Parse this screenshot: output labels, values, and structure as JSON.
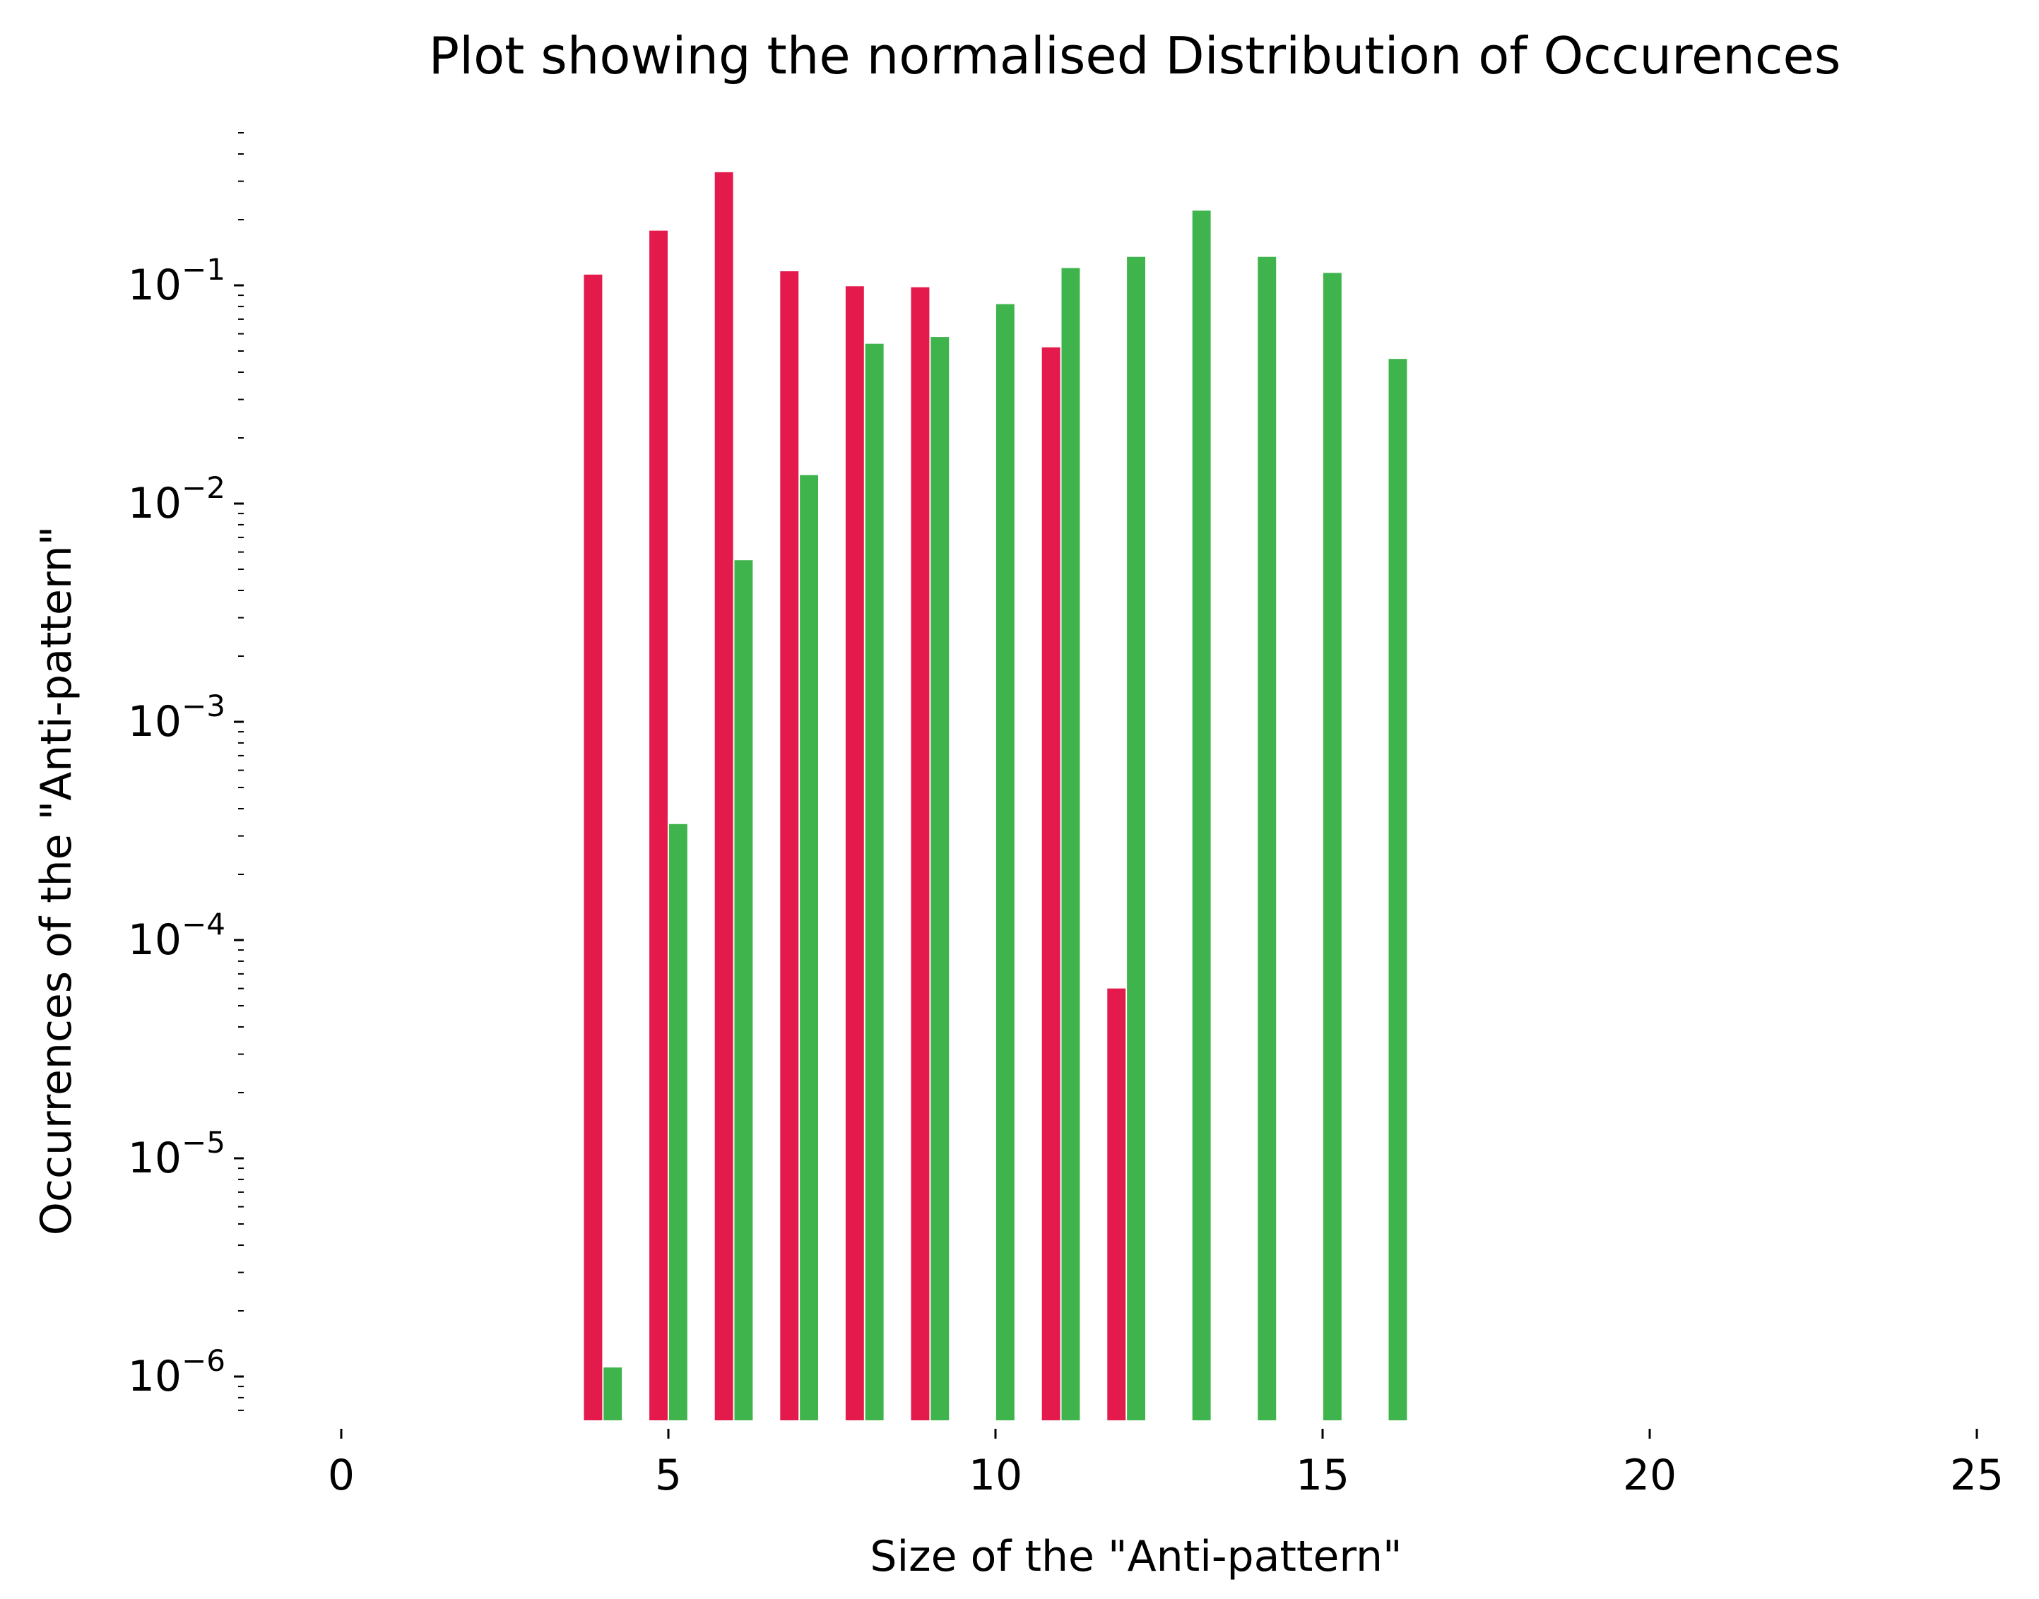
{
  "chart_data": {
    "type": "bar",
    "title": "Plot showing the normalised Distribution of Occurences",
    "xlabel": "Size of the \"Anti-pattern\"",
    "ylabel": "Occurrences of the \"Anti-pattern\"",
    "xlim": [
      -1.5,
      25
    ],
    "ylim": [
      5.7e-07,
      0.6
    ],
    "yscale": "log",
    "grid": false,
    "x_ticks": [
      0,
      5,
      10,
      15,
      20,
      25
    ],
    "x_tick_labels": [
      "0",
      "5",
      "10",
      "15",
      "20",
      "25"
    ],
    "y_ticks": [
      {
        "base": "10",
        "exp": "−6",
        "value": 1e-06
      },
      {
        "base": "10",
        "exp": "−5",
        "value": 1e-05
      },
      {
        "base": "10",
        "exp": "−4",
        "value": 0.0001
      },
      {
        "base": "10",
        "exp": "−3",
        "value": 0.001
      },
      {
        "base": "10",
        "exp": "−2",
        "value": 0.01
      },
      {
        "base": "10",
        "exp": "−1",
        "value": 0.1
      }
    ],
    "series": [
      {
        "color": "#e31a4b",
        "offset": -0.15,
        "x": [
          4,
          5,
          6,
          7,
          8,
          9,
          11,
          12
        ],
        "values": [
          0.112,
          0.178,
          0.33,
          0.116,
          0.099,
          0.098,
          0.052,
          6e-05
        ]
      },
      {
        "color": "#3fb44c",
        "offset": 0.15,
        "x": [
          4,
          5,
          6,
          7,
          8,
          9,
          10,
          11,
          12,
          13,
          14,
          15,
          16
        ],
        "values": [
          1.1e-06,
          0.00034,
          0.0055,
          0.0135,
          0.054,
          0.058,
          0.082,
          0.12,
          0.135,
          0.22,
          0.135,
          0.114,
          0.046
        ]
      }
    ]
  }
}
